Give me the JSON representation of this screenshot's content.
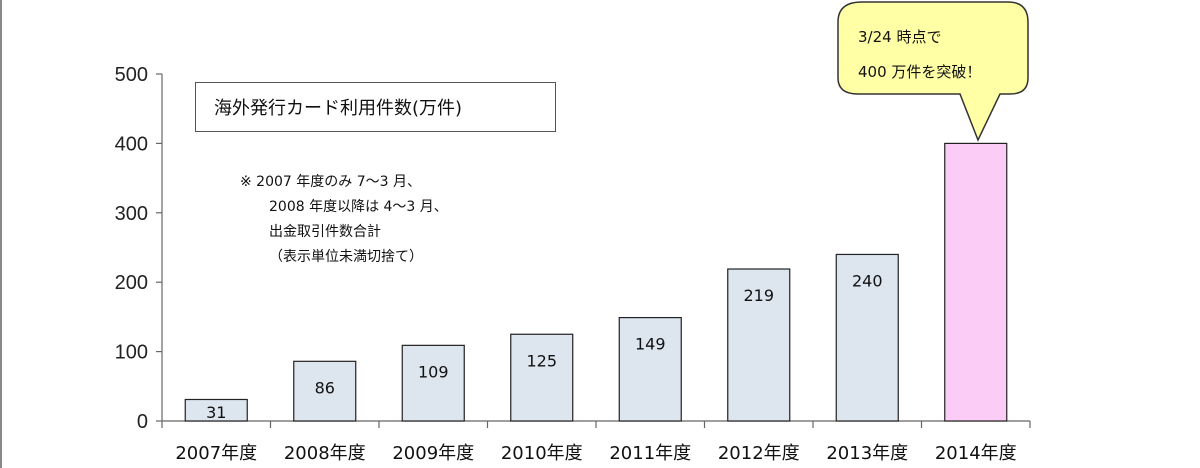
{
  "chart_data": {
    "type": "bar",
    "title": "",
    "legend": "海外発行カード利用件数(万件)",
    "xlabel": "",
    "ylabel": "",
    "ylim": [
      0,
      500
    ],
    "yticks": [
      0,
      100,
      200,
      300,
      400,
      500
    ],
    "categories": [
      "2007年度",
      "2008年度",
      "2009年度",
      "2010年度",
      "2011年度",
      "2012年度",
      "2013年度",
      "2014年度"
    ],
    "values": [
      31,
      86,
      109,
      125,
      149,
      219,
      240,
      400
    ],
    "data_labels": [
      "31",
      "86",
      "109",
      "125",
      "149",
      "219",
      "240",
      ""
    ],
    "bar_colors": [
      "#dde5ef",
      "#dde5ef",
      "#dde5ef",
      "#dde5ef",
      "#dde5ef",
      "#dde5ef",
      "#dde5ef",
      "#fbcdf6"
    ],
    "note_lines": [
      "※ 2007 年度のみ 7～3 月、",
      "2008 年度以降は 4～3 月、",
      "出金取引件数合計",
      "（表示単位未満切捨て）"
    ],
    "callout": {
      "lines": [
        "3/24 時点で",
        "400 万件を突破！"
      ],
      "fill": "#ffffa6"
    }
  }
}
